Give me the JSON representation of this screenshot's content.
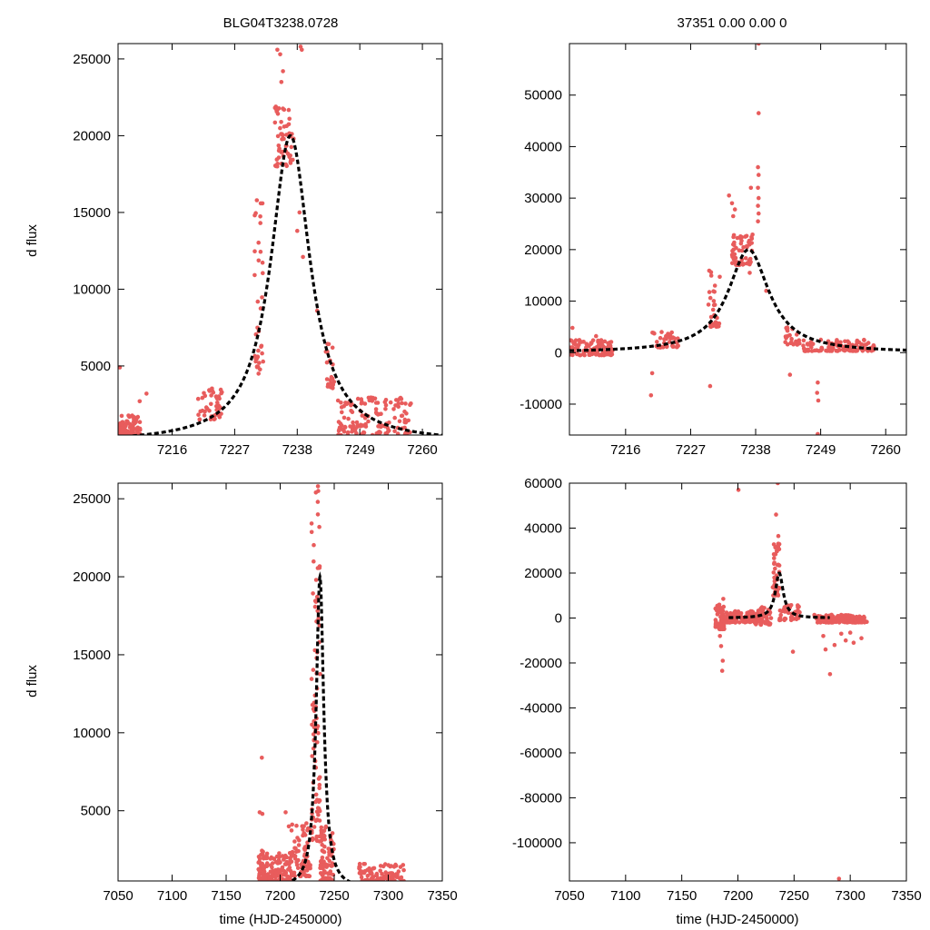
{
  "colors": {
    "points": "#e85c5c",
    "model": "#000000",
    "background": "#ffffff"
  },
  "chart_data": [
    {
      "type": "scatter",
      "panel": "top-left",
      "title": "BLG04T3238.0728",
      "xlabel": "",
      "ylabel": "d flux",
      "xlim": [
        7206.5,
        7263.5
      ],
      "ylim": [
        500,
        26000
      ],
      "xticks": [
        7216,
        7227,
        7238,
        7249,
        7260
      ],
      "yticks": [
        5000,
        10000,
        15000,
        20000,
        25000
      ],
      "model": {
        "name": "fit",
        "t0": 7236.8,
        "peak": 20000,
        "width": 4.2,
        "baseline": 0
      },
      "groups": [
        {
          "x": [
            7206.5,
            7210.5
          ],
          "ymin": 500,
          "ymax": 1800,
          "n": 80
        },
        {
          "x": [
            7220.5,
            7225.0
          ],
          "ymin": 1500,
          "ymax": 3600,
          "n": 45
        },
        {
          "x": [
            7230.5,
            7232.0
          ],
          "ymin": 4500,
          "ymax": 16000,
          "n": 35
        },
        {
          "x": [
            7234.0,
            7237.5
          ],
          "ymin": 18000,
          "ymax": 22000,
          "n": 55
        },
        {
          "x": [
            7243.0,
            7244.5
          ],
          "ymin": 3500,
          "ymax": 6500,
          "n": 20
        },
        {
          "x": [
            7245.0,
            7258.0
          ],
          "ymin": 500,
          "ymax": 3000,
          "n": 130
        }
      ],
      "points": [
        [
          7206.8,
          4900
        ],
        [
          7210.3,
          2700
        ],
        [
          7211.5,
          3200
        ],
        [
          7234.5,
          25600
        ],
        [
          7235.0,
          25300
        ],
        [
          7235.5,
          24200
        ],
        [
          7235.2,
          23500
        ],
        [
          7238.6,
          25800
        ],
        [
          7238.8,
          25600
        ],
        [
          7238.4,
          15000
        ],
        [
          7238.0,
          13800
        ],
        [
          7239.0,
          12100
        ],
        [
          7231.2,
          4500
        ],
        [
          7231.3,
          5200
        ],
        [
          7241.5,
          8600
        ],
        [
          7247.0,
          2600
        ],
        [
          7253.5,
          2200
        ],
        [
          7256.0,
          1400
        ]
      ]
    },
    {
      "type": "scatter",
      "panel": "top-right",
      "title": "37351  0.00  0.00  0",
      "xlabel": "",
      "ylabel": "",
      "xlim": [
        7206.5,
        7263.5
      ],
      "ylim": [
        -16000,
        60000
      ],
      "xticks": [
        7216,
        7227,
        7238,
        7249,
        7260
      ],
      "yticks": [
        -10000,
        0,
        10000,
        20000,
        30000,
        40000,
        50000
      ],
      "model": {
        "name": "fit",
        "t0": 7236.8,
        "peak": 20000,
        "width": 4.2,
        "baseline": 0
      },
      "groups": [
        {
          "x": [
            7206.5,
            7214.0
          ],
          "ymin": -500,
          "ymax": 2500,
          "n": 110
        },
        {
          "x": [
            7220.5,
            7225.0
          ],
          "ymin": 1000,
          "ymax": 4000,
          "n": 40
        },
        {
          "x": [
            7230.0,
            7232.0
          ],
          "ymin": 5000,
          "ymax": 16000,
          "n": 30
        },
        {
          "x": [
            7234.0,
            7237.5
          ],
          "ymin": 17000,
          "ymax": 23000,
          "n": 60
        },
        {
          "x": [
            7243.0,
            7245.5
          ],
          "ymin": 1500,
          "ymax": 5000,
          "n": 25
        },
        {
          "x": [
            7246.0,
            7258.0
          ],
          "ymin": 300,
          "ymax": 2500,
          "n": 110
        }
      ],
      "points": [
        [
          7207.0,
          4800
        ],
        [
          7211.0,
          3200
        ],
        [
          7220.3,
          -8300
        ],
        [
          7220.5,
          -4000
        ],
        [
          7230.3,
          -6500
        ],
        [
          7233.5,
          30500
        ],
        [
          7234.0,
          29000
        ],
        [
          7234.5,
          27800
        ],
        [
          7234.2,
          26500
        ],
        [
          7238.5,
          60000
        ],
        [
          7238.5,
          46500
        ],
        [
          7238.4,
          36000
        ],
        [
          7238.5,
          34500
        ],
        [
          7238.4,
          32000
        ],
        [
          7238.5,
          30000
        ],
        [
          7238.4,
          28500
        ],
        [
          7238.5,
          27000
        ],
        [
          7238.4,
          25500
        ],
        [
          7237.2,
          32000
        ],
        [
          7237.0,
          15500
        ],
        [
          7239.8,
          12000
        ],
        [
          7243.8,
          -4300
        ],
        [
          7248.5,
          -5800
        ],
        [
          7248.4,
          -7800
        ],
        [
          7248.6,
          -9300
        ],
        [
          7248.5,
          -15800
        ],
        [
          7255.5,
          2000
        ],
        [
          7258.0,
          1200
        ]
      ]
    },
    {
      "type": "scatter",
      "panel": "bottom-left",
      "title": "",
      "xlabel": "time (HJD-2450000)",
      "ylabel": "d flux",
      "xlim": [
        7050,
        7350
      ],
      "ylim": [
        500,
        26000
      ],
      "xticks": [
        7050,
        7100,
        7150,
        7200,
        7250,
        7300,
        7350
      ],
      "yticks": [
        5000,
        10000,
        15000,
        20000,
        25000
      ],
      "model": {
        "name": "fit",
        "t0": 7236.8,
        "peak": 20000,
        "width": 4.2,
        "baseline": 0
      },
      "groups": [
        {
          "x": [
            7180,
            7186
          ],
          "ymin": 500,
          "ymax": 2600,
          "n": 60
        },
        {
          "x": [
            7186,
            7210
          ],
          "ymin": 500,
          "ymax": 2300,
          "n": 110
        },
        {
          "x": [
            7210,
            7228
          ],
          "ymin": 800,
          "ymax": 4200,
          "n": 90
        },
        {
          "x": [
            7229,
            7237
          ],
          "ymin": 3000,
          "ymax": 24000,
          "n": 90
        },
        {
          "x": [
            7237,
            7250
          ],
          "ymin": 500,
          "ymax": 4000,
          "n": 90
        },
        {
          "x": [
            7272,
            7315
          ],
          "ymin": 500,
          "ymax": 1600,
          "n": 90
        }
      ],
      "points": [
        [
          7183.0,
          8400
        ],
        [
          7181.0,
          4900
        ],
        [
          7183.5,
          4800
        ],
        [
          7205.0,
          4900
        ],
        [
          7208.0,
          4000
        ],
        [
          7235.0,
          25800
        ],
        [
          7235.2,
          25500
        ],
        [
          7233.0,
          25400
        ],
        [
          7234.8,
          24800
        ]
      ]
    },
    {
      "type": "scatter",
      "panel": "bottom-right",
      "title": "",
      "xlabel": "time (HJD-2450000)",
      "ylabel": "",
      "xlim": [
        7050,
        7350
      ],
      "ylim": [
        -117000,
        60000
      ],
      "xticks": [
        7050,
        7100,
        7150,
        7200,
        7250,
        7300,
        7350
      ],
      "yticks": [
        -100000,
        -80000,
        -60000,
        -40000,
        -20000,
        0,
        20000,
        40000,
        60000
      ],
      "model": {
        "name": "fit",
        "t0": 7236.8,
        "peak": 20000,
        "width": 4.2,
        "baseline": 0
      },
      "groups": [
        {
          "x": [
            7180,
            7188
          ],
          "ymin": -5000,
          "ymax": 6000,
          "n": 80
        },
        {
          "x": [
            7188,
            7215
          ],
          "ymin": -2000,
          "ymax": 3000,
          "n": 110
        },
        {
          "x": [
            7215,
            7230
          ],
          "ymin": -3000,
          "ymax": 5000,
          "n": 60
        },
        {
          "x": [
            7231,
            7237
          ],
          "ymin": 10000,
          "ymax": 34000,
          "n": 45
        },
        {
          "x": [
            7237,
            7255
          ],
          "ymin": -1000,
          "ymax": 6000,
          "n": 45
        },
        {
          "x": [
            7268,
            7315
          ],
          "ymin": -2000,
          "ymax": 1500,
          "n": 170
        }
      ],
      "points": [
        [
          7186.0,
          -23500
        ],
        [
          7186.5,
          -19000
        ],
        [
          7185.0,
          -12500
        ],
        [
          7184.0,
          -8000
        ],
        [
          7187.0,
          8500
        ],
        [
          7200.5,
          57000
        ],
        [
          7235.5,
          60000
        ],
        [
          7234.0,
          46000
        ],
        [
          7236.0,
          36500
        ],
        [
          7249.0,
          -15000
        ],
        [
          7282.0,
          -25000
        ],
        [
          7290.0,
          -116000
        ],
        [
          7278.0,
          -14000
        ],
        [
          7286.0,
          -12000
        ],
        [
          7296.0,
          -10000
        ],
        [
          7303.0,
          -11000
        ],
        [
          7310.0,
          -9000
        ],
        [
          7276.0,
          -8000
        ],
        [
          7292.0,
          -7000
        ],
        [
          7300.0,
          -6500
        ]
      ]
    }
  ]
}
